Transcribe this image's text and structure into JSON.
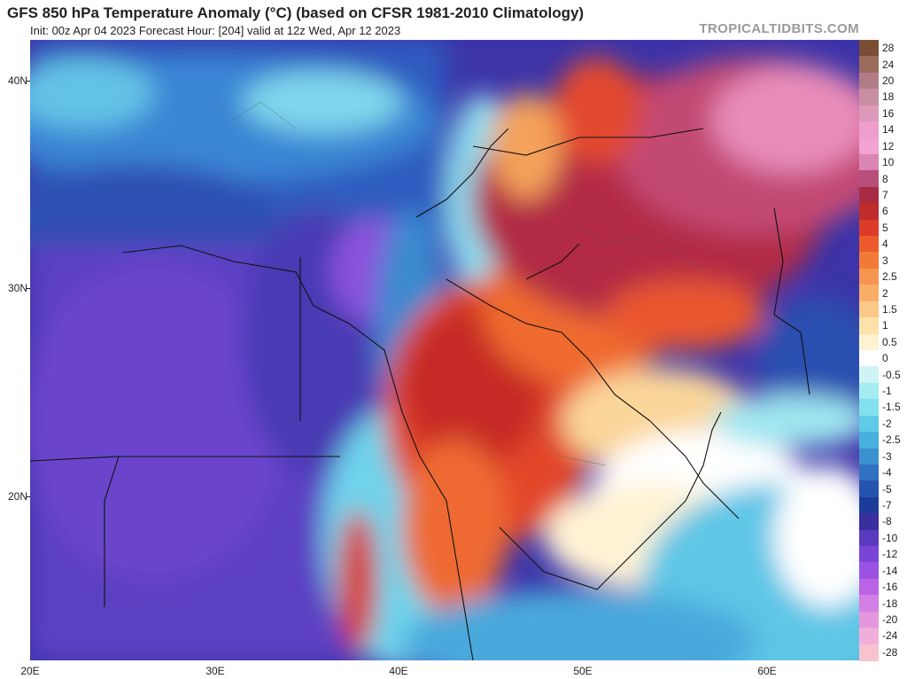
{
  "header": {
    "title": "GFS 850 hPa Temperature Anomaly (°C) (based on CFSR 1981-2010 Climatology)",
    "subtitle": "Init: 00z Apr 04 2023   Forecast Hour: [204]   valid at 12z Wed, Apr 12 2023",
    "brand": "TROPICALTIDBITS.COM"
  },
  "axes": {
    "lat_labels": [
      "40N",
      "30N",
      "20N"
    ],
    "lon_labels": [
      "20E",
      "30E",
      "40E",
      "50E",
      "60E"
    ]
  },
  "colorbar": {
    "labels": [
      "28",
      "24",
      "20",
      "18",
      "16",
      "14",
      "12",
      "10",
      "8",
      "7",
      "6",
      "5",
      "4",
      "3",
      "2.5",
      "2",
      "1.5",
      "1",
      "0.5",
      "0",
      "-0.5",
      "-1",
      "-1.5",
      "-2",
      "-2.5",
      "-3",
      "-4",
      "-5",
      "-7",
      "-8",
      "-10",
      "-12",
      "-14",
      "-16",
      "-18",
      "-20",
      "-24",
      "-28"
    ],
    "colors": [
      "#7a4e35",
      "#9a6a5c",
      "#b27c86",
      "#c88ea2",
      "#dc99ba",
      "#ee9dcd",
      "#f2a3d2",
      "#da86b2",
      "#b84f7a",
      "#a82b45",
      "#c02b2b",
      "#dd3b2a",
      "#ec5a2c",
      "#f27a37",
      "#f59550",
      "#f8ae67",
      "#fac887",
      "#fce1a8",
      "#fef2cf",
      "#ffffff",
      "#cff4f6",
      "#a5ecf1",
      "#82e1ec",
      "#5fcbe6",
      "#48b0dd",
      "#3b90d0",
      "#3071c2",
      "#2553ad",
      "#1b3c99",
      "#3a2f9e",
      "#5a3bbf",
      "#7a45d6",
      "#9b52e2",
      "#bb63e4",
      "#d57ee4",
      "#e596dd",
      "#f1aed8",
      "#f8c3cf"
    ]
  }
}
